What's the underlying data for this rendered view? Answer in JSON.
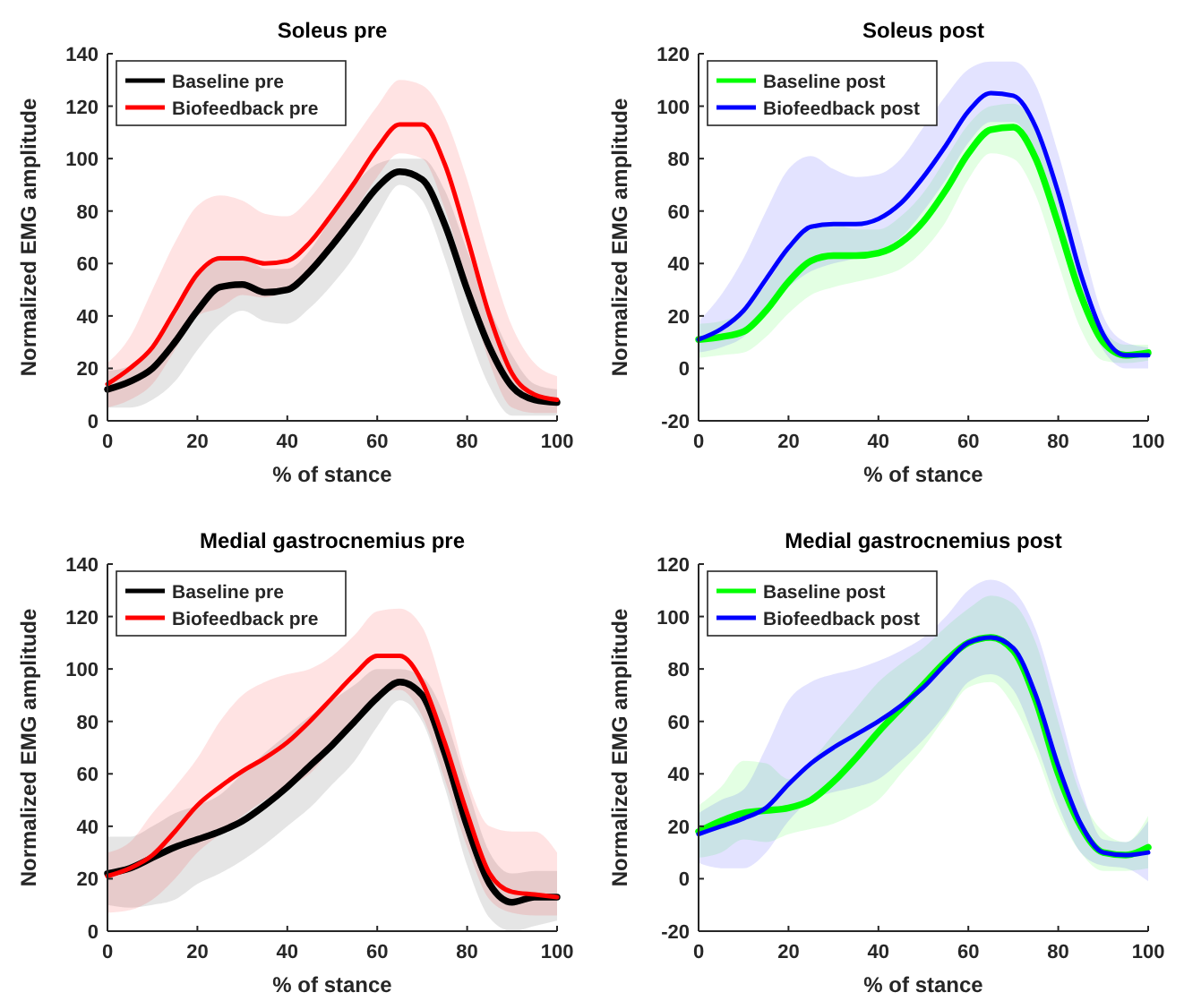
{
  "chart_data": [
    {
      "type": "line",
      "title": "Soleus pre",
      "xlabel": "% of stance",
      "ylabel": "Normalized EMG amplitude",
      "x": [
        0,
        5,
        10,
        15,
        20,
        25,
        30,
        35,
        40,
        45,
        50,
        55,
        60,
        65,
        70,
        75,
        80,
        85,
        90,
        95,
        100
      ],
      "xlim": [
        0,
        100
      ],
      "xticks": [
        0,
        20,
        40,
        60,
        80,
        100
      ],
      "ylim": [
        0,
        140
      ],
      "yticks": [
        0,
        20,
        40,
        60,
        80,
        100,
        120,
        140
      ],
      "legend": "top left",
      "series": [
        {
          "name": "Baseline pre",
          "color": "#000000",
          "values": [
            12,
            15,
            20,
            30,
            42,
            51,
            52,
            49,
            50,
            57,
            67,
            78,
            89,
            95,
            92,
            75,
            50,
            28,
            13,
            8,
            7
          ],
          "lower": [
            5,
            5,
            8,
            15,
            27,
            37,
            42,
            38,
            37,
            43,
            52,
            63,
            78,
            90,
            84,
            62,
            35,
            13,
            2,
            2,
            2
          ],
          "upper": [
            19,
            21,
            28,
            40,
            55,
            63,
            63,
            58,
            58,
            65,
            78,
            90,
            98,
            100,
            100,
            88,
            65,
            43,
            25,
            14,
            12
          ]
        },
        {
          "name": "Biofeedback pre",
          "color": "#ff0000",
          "values": [
            14,
            20,
            28,
            42,
            56,
            62,
            62,
            60,
            61,
            68,
            79,
            91,
            104,
            113,
            113,
            98,
            70,
            40,
            18,
            10,
            8
          ],
          "lower": [
            5,
            8,
            14,
            27,
            40,
            43,
            48,
            47,
            50,
            56,
            67,
            80,
            93,
            102,
            100,
            81,
            52,
            22,
            5,
            3,
            3
          ],
          "upper": [
            22,
            32,
            50,
            68,
            82,
            86,
            84,
            79,
            78,
            85,
            96,
            108,
            120,
            130,
            128,
            116,
            92,
            62,
            36,
            22,
            17
          ]
        }
      ]
    },
    {
      "type": "line",
      "title": "Soleus post",
      "xlabel": "% of stance",
      "ylabel": "Normalized EMG amplitude",
      "x": [
        0,
        5,
        10,
        15,
        20,
        25,
        30,
        35,
        40,
        45,
        50,
        55,
        60,
        65,
        70,
        75,
        80,
        85,
        90,
        95,
        100
      ],
      "xlim": [
        0,
        100
      ],
      "xticks": [
        0,
        20,
        40,
        60,
        80,
        100
      ],
      "ylim": [
        -20,
        120
      ],
      "yticks": [
        -20,
        0,
        20,
        40,
        60,
        80,
        100,
        120
      ],
      "legend": "top left",
      "series": [
        {
          "name": "Baseline post",
          "color": "#00ff00",
          "values": [
            11,
            12,
            14,
            22,
            33,
            41,
            43,
            43,
            44,
            48,
            56,
            68,
            82,
            91,
            92,
            80,
            55,
            28,
            10,
            5,
            6
          ],
          "lower": [
            4,
            5,
            6,
            12,
            21,
            28,
            31,
            33,
            35,
            38,
            45,
            56,
            72,
            82,
            80,
            66,
            40,
            15,
            3,
            2,
            3
          ],
          "upper": [
            17,
            18,
            22,
            32,
            45,
            53,
            55,
            53,
            53,
            58,
            67,
            80,
            93,
            100,
            101,
            92,
            68,
            38,
            15,
            9,
            9
          ]
        },
        {
          "name": "Biofeedback post",
          "color": "#0000ff",
          "values": [
            11,
            15,
            22,
            34,
            46,
            54,
            55,
            55,
            57,
            63,
            73,
            85,
            98,
            105,
            104,
            92,
            67,
            36,
            13,
            5,
            5
          ],
          "lower": [
            6,
            8,
            12,
            22,
            31,
            37,
            40,
            42,
            45,
            50,
            60,
            72,
            86,
            94,
            94,
            82,
            55,
            26,
            7,
            0,
            0
          ],
          "upper": [
            18,
            28,
            42,
            60,
            76,
            81,
            76,
            73,
            74,
            80,
            92,
            104,
            114,
            117,
            117,
            108,
            82,
            50,
            20,
            10,
            8
          ]
        }
      ]
    },
    {
      "type": "line",
      "title": "Medial gastrocnemius pre",
      "xlabel": "% of stance",
      "ylabel": "Normalized EMG amplitude",
      "x": [
        0,
        5,
        10,
        15,
        20,
        25,
        30,
        35,
        40,
        45,
        50,
        55,
        60,
        65,
        70,
        75,
        80,
        85,
        90,
        95,
        100
      ],
      "xlim": [
        0,
        100
      ],
      "xticks": [
        0,
        20,
        40,
        60,
        80,
        100
      ],
      "ylim": [
        0,
        140
      ],
      "yticks": [
        0,
        20,
        40,
        60,
        80,
        100,
        120,
        140
      ],
      "legend": "top left",
      "series": [
        {
          "name": "Baseline pre",
          "color": "#000000",
          "values": [
            22,
            24,
            28,
            32,
            35,
            38,
            42,
            48,
            55,
            63,
            71,
            80,
            89,
            95,
            90,
            68,
            40,
            18,
            11,
            13,
            13
          ],
          "lower": [
            10,
            9,
            10,
            12,
            18,
            22,
            27,
            33,
            40,
            47,
            56,
            65,
            78,
            88,
            80,
            55,
            25,
            5,
            0,
            2,
            4
          ],
          "upper": [
            36,
            36,
            40,
            45,
            48,
            52,
            60,
            68,
            75,
            82,
            88,
            94,
            100,
            100,
            97,
            82,
            55,
            30,
            22,
            23,
            23
          ]
        },
        {
          "name": "Biofeedback pre",
          "color": "#ff0000",
          "values": [
            21,
            24,
            29,
            38,
            48,
            55,
            61,
            66,
            72,
            80,
            89,
            98,
            105,
            105,
            95,
            72,
            45,
            22,
            15,
            14,
            13
          ],
          "lower": [
            7,
            8,
            12,
            20,
            30,
            37,
            44,
            50,
            55,
            60,
            70,
            80,
            90,
            92,
            82,
            58,
            32,
            12,
            7,
            6,
            6
          ],
          "upper": [
            30,
            34,
            45,
            55,
            66,
            80,
            90,
            95,
            98,
            100,
            105,
            113,
            122,
            123,
            116,
            90,
            58,
            40,
            38,
            38,
            30
          ]
        }
      ]
    },
    {
      "type": "line",
      "title": "Medial gastrocnemius post",
      "xlabel": "% of stance",
      "ylabel": "Normalized EMG amplitude",
      "x": [
        0,
        5,
        10,
        15,
        20,
        25,
        30,
        35,
        40,
        45,
        50,
        55,
        60,
        65,
        70,
        75,
        80,
        85,
        90,
        95,
        100
      ],
      "xlim": [
        0,
        100
      ],
      "xticks": [
        0,
        20,
        40,
        60,
        80,
        100
      ],
      "ylim": [
        -20,
        120
      ],
      "yticks": [
        -20,
        0,
        20,
        40,
        60,
        80,
        100,
        120
      ],
      "legend": "top left",
      "series": [
        {
          "name": "Baseline post",
          "color": "#00ff00",
          "values": [
            18,
            22,
            25,
            26,
            27,
            30,
            37,
            46,
            56,
            65,
            74,
            83,
            90,
            92,
            87,
            68,
            40,
            20,
            10,
            9,
            12
          ],
          "lower": [
            8,
            10,
            15,
            14,
            17,
            19,
            21,
            25,
            30,
            40,
            50,
            62,
            73,
            75,
            66,
            48,
            25,
            10,
            3,
            3,
            4
          ],
          "upper": [
            28,
            35,
            45,
            44,
            38,
            45,
            55,
            65,
            75,
            82,
            88,
            96,
            103,
            108,
            105,
            90,
            60,
            32,
            18,
            14,
            24
          ]
        },
        {
          "name": "Biofeedback post",
          "color": "#0000ff",
          "values": [
            17,
            20,
            23,
            27,
            36,
            44,
            50,
            55,
            60,
            66,
            73,
            82,
            90,
            92,
            88,
            70,
            43,
            21,
            10,
            9,
            10
          ],
          "lower": [
            6,
            4,
            4,
            10,
            22,
            30,
            33,
            35,
            38,
            45,
            53,
            63,
            75,
            78,
            72,
            52,
            28,
            10,
            5,
            4,
            -1
          ],
          "upper": [
            25,
            30,
            34,
            50,
            68,
            75,
            78,
            80,
            83,
            87,
            92,
            100,
            110,
            114,
            110,
            95,
            66,
            35,
            15,
            14,
            22
          ]
        }
      ]
    }
  ]
}
